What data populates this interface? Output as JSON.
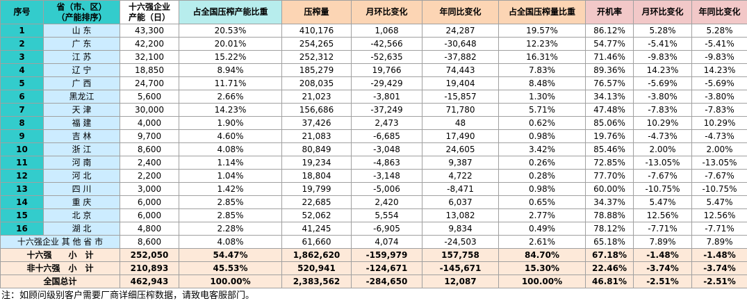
{
  "table": {
    "header": [
      "序号",
      "省（市、区）\n（产能排序）",
      "十六强企业\n产能（日）",
      "占全国压榨产能比重",
      "压榨量",
      "月环比变化",
      "年同比变化",
      "占全国压榨量比重",
      "开机率",
      "月环比变化",
      "年同比变化"
    ],
    "rows": [
      [
        "1",
        "山 东",
        "43,300",
        "20.53%",
        "410,176",
        "1,068",
        "24,287",
        "19.57%",
        "86.12%",
        "5.28%",
        "5.28%"
      ],
      [
        "2",
        "广 东",
        "42,200",
        "20.01%",
        "254,265",
        "-42,566",
        "-30,648",
        "12.23%",
        "54.77%",
        "-5.41%",
        "-5.41%"
      ],
      [
        "3",
        "江 苏",
        "32,100",
        "15.22%",
        "252,312",
        "-52,635",
        "-37,882",
        "16.31%",
        "71.46%",
        "-9.83%",
        "-9.83%"
      ],
      [
        "4",
        "辽 宁",
        "18,850",
        "8.94%",
        "185,279",
        "19,766",
        "74,443",
        "7.83%",
        "89.36%",
        "14.23%",
        "14.23%"
      ],
      [
        "5",
        "广 西",
        "24,700",
        "11.71%",
        "208,035",
        "-29,429",
        "19,404",
        "8.48%",
        "76.57%",
        "-5.69%",
        "-5.69%"
      ],
      [
        "6",
        "黑龙江",
        "5,600",
        "2.66%",
        "21,023",
        "-3,801",
        "-15,857",
        "1.30%",
        "34.13%",
        "-3.80%",
        "-3.80%"
      ],
      [
        "7",
        "天 津",
        "30,000",
        "14.23%",
        "156,686",
        "-37,249",
        "71,780",
        "5.71%",
        "47.48%",
        "-7.83%",
        "-7.83%"
      ],
      [
        "8",
        "福 建",
        "4,000",
        "1.90%",
        "37,426",
        "2,473",
        "48",
        "0.62%",
        "85.06%",
        "10.29%",
        "10.29%"
      ],
      [
        "9",
        "吉 林",
        "9,700",
        "4.60%",
        "21,083",
        "-6,685",
        "17,490",
        "0.98%",
        "19.76%",
        "-4.73%",
        "-4.73%"
      ],
      [
        "10",
        "浙 江",
        "8,600",
        "4.08%",
        "80,849",
        "-3,048",
        "24,605",
        "3.42%",
        "85.46%",
        "2.00%",
        "2.00%"
      ],
      [
        "11",
        "河 南",
        "2,400",
        "1.14%",
        "19,234",
        "-4,863",
        "9,387",
        "0.26%",
        "72.85%",
        "-13.05%",
        "-13.05%"
      ],
      [
        "12",
        "河 北",
        "2,200",
        "1.04%",
        "18,804",
        "-3,148",
        "4,722",
        "0.28%",
        "77.70%",
        "-7.67%",
        "-7.67%"
      ],
      [
        "13",
        "四 川",
        "3,000",
        "1.42%",
        "19,799",
        "-5,006",
        "-8,471",
        "0.98%",
        "60.00%",
        "-10.75%",
        "-10.75%"
      ],
      [
        "14",
        "重 庆",
        "6,000",
        "2.85%",
        "22,685",
        "2,420",
        "6,037",
        "0.65%",
        "34.37%",
        "5.47%",
        "5.47%"
      ],
      [
        "15",
        "北 京",
        "6,000",
        "2.85%",
        "52,062",
        "5,554",
        "13,082",
        "2.77%",
        "78.88%",
        "12.56%",
        "12.56%"
      ],
      [
        "16",
        "湖 北",
        "4,800",
        "2.28%",
        "41,245",
        "-6,905",
        "9,834",
        "0.49%",
        "78.12%",
        "-7.71%",
        "-7.71%"
      ]
    ],
    "summary_rows": [
      [
        "十六强企业 其 他 省 市",
        "8,600",
        "4.08%",
        "61,660",
        "4,074",
        "-24,503",
        "2.61%",
        "65.18%",
        "7.89%",
        "7.89%"
      ],
      [
        "十六强　　小　计",
        "252,050",
        "54.47%",
        "1,862,620",
        "-159,979",
        "157,758",
        "84.70%",
        "67.18%",
        "-1.48%",
        "-1.48%"
      ],
      [
        "非十六强　小　计",
        "210,893",
        "45.53%",
        "520,941",
        "-124,671",
        "-145,671",
        "15.30%",
        "22.46%",
        "-3.74%",
        "-3.74%"
      ],
      [
        "全国总计",
        "462,943",
        "100.00%",
        "2,383,562",
        "-284,650",
        "12,087",
        "100.00%",
        "46.81%",
        "-2.51%",
        "-2.51%"
      ]
    ]
  },
  "footer": {
    "note": "注：如顾问级别客户需要厂商详细压榨数据，请致电客服部门。"
  }
}
